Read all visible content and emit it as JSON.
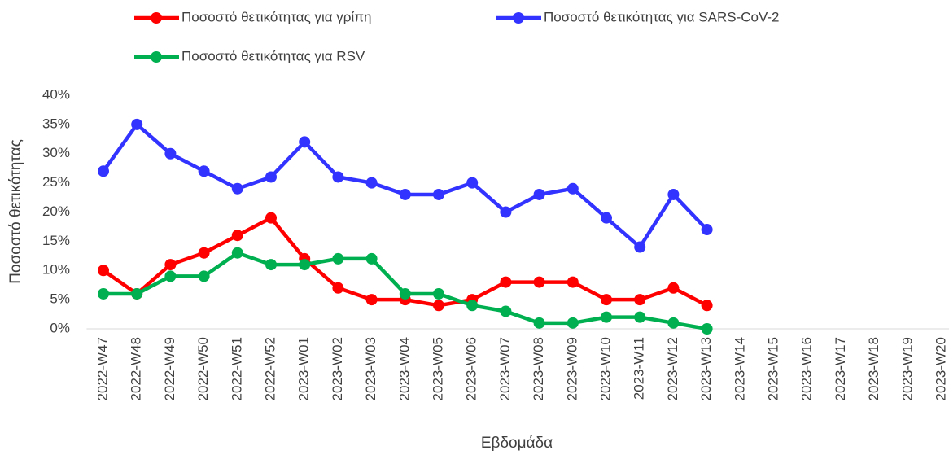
{
  "chart_data": {
    "type": "line",
    "categories": [
      "2022-W47",
      "2022-W48",
      "2022-W49",
      "2022-W50",
      "2022-W51",
      "2022-W52",
      "2023-W01",
      "2023-W02",
      "2023-W03",
      "2023-W04",
      "2023-W05",
      "2023-W06",
      "2023-W07",
      "2023-W08",
      "2023-W09",
      "2023-W10",
      "2023-W11",
      "2023-W12",
      "2023-W13",
      "2023-W14",
      "2023-W15",
      "2023-W16",
      "2023-W17",
      "2023-W18",
      "2023-W19",
      "2023-W20"
    ],
    "series": [
      {
        "name": "Ποσοστό θετικότητας για γρίπη",
        "color": "#ff0000",
        "values": [
          10,
          6,
          11,
          13,
          16,
          19,
          12,
          7,
          5,
          5,
          4,
          5,
          8,
          8,
          8,
          5,
          5,
          7,
          4,
          null,
          null,
          null,
          null,
          null,
          null,
          null
        ]
      },
      {
        "name": "Ποσοστό θετικότητας για SARS-CoV-2",
        "color": "#3333ff",
        "values": [
          27,
          35,
          30,
          27,
          24,
          26,
          32,
          26,
          25,
          23,
          23,
          25,
          20,
          23,
          24,
          19,
          14,
          23,
          17,
          null,
          null,
          null,
          null,
          null,
          null,
          null
        ]
      },
      {
        "name": "Ποσοστό θετικότητας για RSV",
        "color": "#00b050",
        "values": [
          6,
          6,
          9,
          9,
          13,
          11,
          11,
          12,
          12,
          6,
          6,
          4,
          3,
          1,
          1,
          2,
          2,
          1,
          0,
          null,
          null,
          null,
          null,
          null,
          null,
          null
        ]
      }
    ],
    "ylim": [
      0,
      40
    ],
    "yticks": [
      {
        "value": 0,
        "label": "0%"
      },
      {
        "value": 5,
        "label": "5%"
      },
      {
        "value": 10,
        "label": "10%"
      },
      {
        "value": 15,
        "label": "15%"
      },
      {
        "value": 20,
        "label": "20%"
      },
      {
        "value": 25,
        "label": "25%"
      },
      {
        "value": 30,
        "label": "30%"
      },
      {
        "value": 35,
        "label": "35%"
      },
      {
        "value": 40,
        "label": "40%"
      }
    ],
    "y_label": "Ποσοστό θετικότητας",
    "x_label": "Εβδομάδα",
    "grid": false
  }
}
